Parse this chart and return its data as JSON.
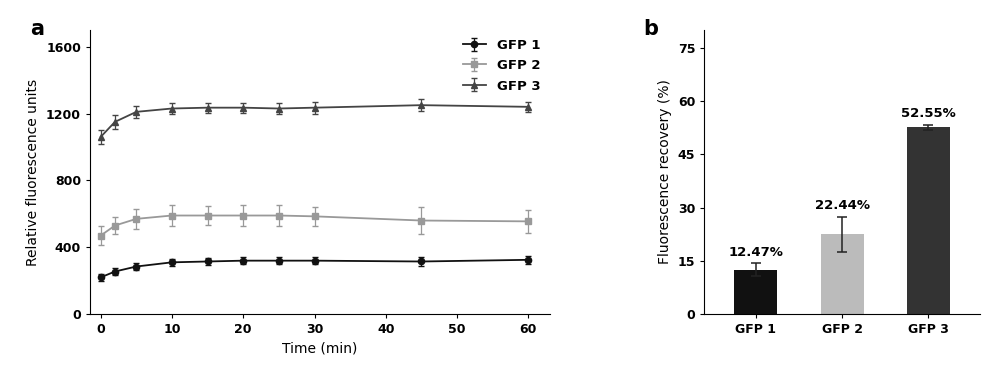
{
  "panel_a": {
    "time_points": [
      0,
      2,
      5,
      10,
      15,
      20,
      25,
      30,
      45,
      60
    ],
    "gfp1_mean": [
      220,
      255,
      285,
      310,
      315,
      320,
      320,
      320,
      315,
      325
    ],
    "gfp1_err": [
      20,
      20,
      20,
      20,
      20,
      20,
      20,
      20,
      25,
      25
    ],
    "gfp2_mean": [
      470,
      530,
      570,
      590,
      590,
      590,
      590,
      585,
      560,
      555
    ],
    "gfp2_err": [
      55,
      50,
      60,
      60,
      55,
      60,
      60,
      55,
      80,
      70
    ],
    "gfp3_mean": [
      1060,
      1150,
      1210,
      1230,
      1235,
      1235,
      1230,
      1235,
      1250,
      1240
    ],
    "gfp3_err": [
      40,
      40,
      35,
      30,
      30,
      30,
      30,
      35,
      35,
      30
    ],
    "xlabel": "Time (min)",
    "ylabel": "Relative fluorescence units",
    "ylim": [
      0,
      1700
    ],
    "yticks": [
      0,
      400,
      800,
      1200,
      1600
    ],
    "xticks": [
      0,
      10,
      20,
      30,
      40,
      50,
      60
    ],
    "color_gfp1": "#111111",
    "color_gfp2": "#999999",
    "color_gfp3": "#444444",
    "legend_labels": [
      "GFP 1",
      "GFP 2",
      "GFP 3"
    ]
  },
  "panel_b": {
    "categories": [
      "GFP 1",
      "GFP 2",
      "GFP 3"
    ],
    "values": [
      12.47,
      22.44,
      52.55
    ],
    "errors": [
      1.8,
      5.0,
      0.8
    ],
    "bar_colors": [
      "#111111",
      "#bbbbbb",
      "#333333"
    ],
    "labels": [
      "12.47%",
      "22.44%",
      "52.55%"
    ],
    "ylabel": "Fluorescence recovery (%)",
    "ylim": [
      0,
      80
    ],
    "yticks": [
      0,
      15,
      30,
      45,
      60,
      75
    ]
  },
  "label_fontsize": 10,
  "tick_fontsize": 9,
  "panel_label_fontsize": 15,
  "background_color": "#ffffff"
}
